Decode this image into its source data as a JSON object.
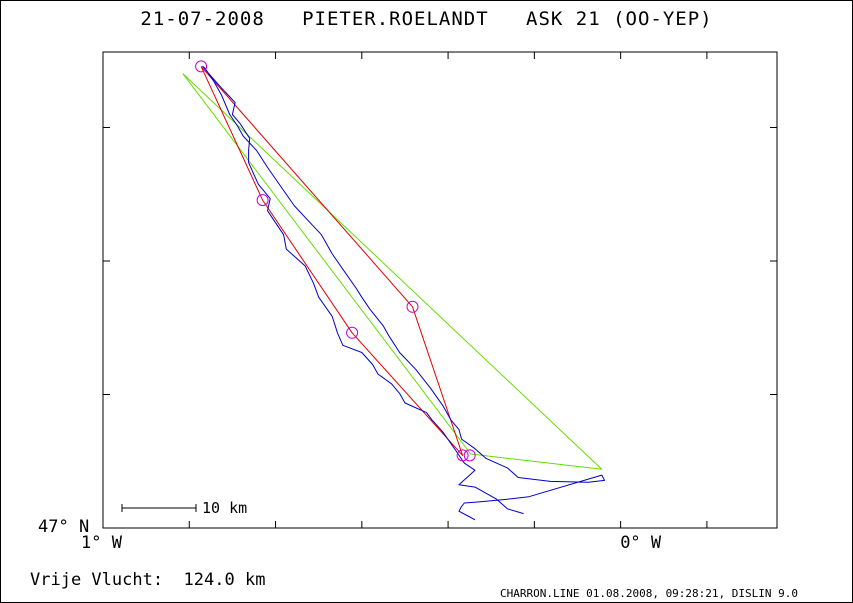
{
  "header": {
    "date": "21-07-2008",
    "pilot": "PIETER.ROELANDT",
    "glider": "ASK 21 (OO-YEP)"
  },
  "summary": {
    "flight_label": "Vrije Vlucht:",
    "distance": "124.0 km"
  },
  "footer": {
    "text": "CHARRON.LINE 01.08.2008, 09:28:21, DISLIN 9.0"
  },
  "chart_data": {
    "type": "line",
    "title": "21-07-2008   PIETER.ROELANDT   ASK 21 (OO-YEP)",
    "xlabel": "",
    "ylabel": "",
    "x_ticks": [
      {
        "value": -1,
        "label": "1° W"
      },
      {
        "value": 0,
        "label": "0° W"
      }
    ],
    "y_ticks": [
      {
        "value": 47,
        "label": "47° N"
      }
    ],
    "xlim": [
      -1.0,
      0.25
    ],
    "ylim": [
      47.0,
      47.99
    ],
    "scale_bar": {
      "length_km": 10,
      "label": "10 km"
    },
    "colors": {
      "track": "#0000cc",
      "task": "#e00000",
      "free_flight": "#66dd00",
      "turnpoint": "#cc00cc"
    },
    "series": [
      {
        "key": "track",
        "points": [
          [
            -0.31,
            47.017
          ],
          [
            -0.325,
            47.026
          ],
          [
            -0.34,
            47.035
          ],
          [
            -0.335,
            47.045
          ],
          [
            -0.33,
            47.052
          ],
          [
            -0.305,
            47.054
          ],
          [
            -0.25,
            47.06
          ],
          [
            -0.21,
            47.065
          ],
          [
            -0.075,
            47.11
          ],
          [
            -0.07,
            47.099
          ],
          [
            -0.1,
            47.095
          ],
          [
            -0.17,
            47.097
          ],
          [
            -0.23,
            47.105
          ],
          [
            -0.25,
            47.125
          ],
          [
            -0.29,
            47.145
          ],
          [
            -0.31,
            47.165
          ],
          [
            -0.335,
            47.185
          ],
          [
            -0.34,
            47.205
          ],
          [
            -0.355,
            47.225
          ],
          [
            -0.37,
            47.255
          ],
          [
            -0.392,
            47.29
          ],
          [
            -0.42,
            47.33
          ],
          [
            -0.45,
            47.365
          ],
          [
            -0.47,
            47.4
          ],
          [
            -0.48,
            47.42
          ],
          [
            -0.505,
            47.455
          ],
          [
            -0.52,
            47.48
          ],
          [
            -0.53,
            47.498
          ],
          [
            -0.55,
            47.53
          ],
          [
            -0.575,
            47.57
          ],
          [
            -0.595,
            47.61
          ],
          [
            -0.62,
            47.64
          ],
          [
            -0.645,
            47.67
          ],
          [
            -0.67,
            47.71
          ],
          [
            -0.695,
            47.75
          ],
          [
            -0.715,
            47.785
          ],
          [
            -0.74,
            47.815
          ],
          [
            -0.75,
            47.835
          ],
          [
            -0.765,
            47.86
          ],
          [
            -0.78,
            47.9
          ],
          [
            -0.795,
            47.93
          ],
          [
            -0.81,
            47.955
          ],
          [
            -0.815,
            47.96
          ],
          [
            -0.8,
            47.94
          ],
          [
            -0.78,
            47.915
          ],
          [
            -0.755,
            47.885
          ],
          [
            -0.76,
            47.86
          ],
          [
            -0.745,
            47.84
          ],
          [
            -0.728,
            47.81
          ],
          [
            -0.73,
            47.785
          ],
          [
            -0.73,
            47.76
          ],
          [
            -0.712,
            47.715
          ],
          [
            -0.69,
            47.685
          ],
          [
            -0.695,
            47.66
          ],
          [
            -0.665,
            47.61
          ],
          [
            -0.66,
            47.58
          ],
          [
            -0.625,
            47.545
          ],
          [
            -0.61,
            47.51
          ],
          [
            -0.6,
            47.48
          ],
          [
            -0.575,
            47.44
          ],
          [
            -0.565,
            47.405
          ],
          [
            -0.555,
            47.38
          ],
          [
            -0.52,
            47.365
          ],
          [
            -0.5,
            47.34
          ],
          [
            -0.49,
            47.32
          ],
          [
            -0.465,
            47.3
          ],
          [
            -0.45,
            47.28
          ],
          [
            -0.44,
            47.26
          ],
          [
            -0.4,
            47.24
          ],
          [
            -0.39,
            47.225
          ],
          [
            -0.37,
            47.2
          ],
          [
            -0.345,
            47.16
          ],
          [
            -0.33,
            47.135
          ],
          [
            -0.31,
            47.12
          ],
          [
            -0.325,
            47.105
          ],
          [
            -0.34,
            47.09
          ],
          [
            -0.31,
            47.085
          ],
          [
            -0.27,
            47.06
          ],
          [
            -0.25,
            47.04
          ],
          [
            -0.22,
            47.03
          ]
        ]
      },
      {
        "key": "task",
        "points": [
          [
            -0.818,
            47.96
          ],
          [
            -0.704,
            47.682
          ],
          [
            -0.538,
            47.406
          ],
          [
            -0.333,
            47.151
          ],
          [
            -0.426,
            47.46
          ],
          [
            -0.818,
            47.96
          ]
        ]
      },
      {
        "key": "free_flight",
        "points": [
          [
            -0.852,
            47.945
          ],
          [
            -0.318,
            47.154
          ],
          [
            -0.075,
            47.122
          ],
          [
            -0.852,
            47.945
          ]
        ]
      },
      {
        "key": "turnpoints",
        "points": [
          [
            -0.818,
            47.96
          ],
          [
            -0.704,
            47.682
          ],
          [
            -0.538,
            47.406
          ],
          [
            -0.426,
            47.46
          ],
          [
            -0.333,
            47.151
          ],
          [
            -0.32,
            47.151
          ]
        ]
      }
    ]
  }
}
